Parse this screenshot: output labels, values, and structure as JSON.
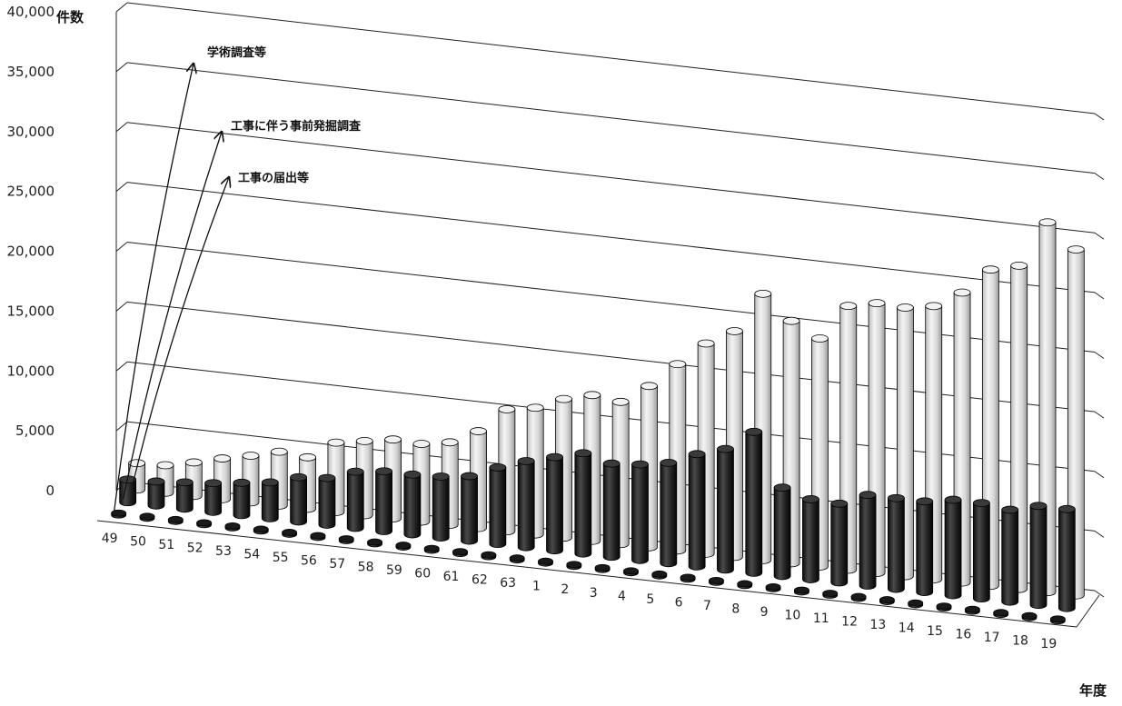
{
  "chart_data": {
    "type": "bar",
    "subtype": "3d-cylinder-clustered-depth",
    "ylabel": "件数",
    "xlabel": "年度",
    "ylim": [
      0,
      40000
    ],
    "y_ticks": [
      "0",
      "5,000",
      "10,000",
      "15,000",
      "20,000",
      "25,000",
      "30,000",
      "35,000",
      "40,000"
    ],
    "grid": true,
    "categories": [
      "49",
      "50",
      "51",
      "52",
      "53",
      "54",
      "55",
      "56",
      "57",
      "58",
      "59",
      "60",
      "61",
      "62",
      "63",
      "1",
      "2",
      "3",
      "4",
      "5",
      "6",
      "7",
      "8",
      "9",
      "10",
      "11",
      "12",
      "13",
      "14",
      "15",
      "16",
      "17",
      "18",
      "19"
    ],
    "series": [
      {
        "name": "工事の届出等",
        "color": "#1a1a1a",
        "values": [
          1900,
          2000,
          2200,
          2400,
          2700,
          3000,
          3700,
          3900,
          4700,
          5000,
          5000,
          5100,
          5400,
          6400,
          7200,
          7800,
          8400,
          7800,
          8000,
          8400,
          9400,
          10100,
          11800,
          7400,
          6700,
          6600,
          7600,
          7600,
          7600,
          8000,
          8000,
          7700,
          8300,
          8300
        ]
      },
      {
        "name": "工事に伴う事前発掘調査",
        "color": "#d8d8d8",
        "values": [
          2200,
          2300,
          2800,
          3400,
          3900,
          4500,
          4300,
          5800,
          6200,
          6600,
          6500,
          6900,
          8100,
          10200,
          10600,
          11600,
          12200,
          11900,
          13500,
          15600,
          17600,
          18900,
          22300,
          20300,
          19100,
          22100,
          22600,
          22500,
          22900,
          24300,
          26500,
          27100,
          31000,
          29000
        ]
      },
      {
        "name": "学術調査等",
        "color": "#2a2a2a",
        "values": [
          100,
          100,
          100,
          100,
          100,
          100,
          100,
          100,
          100,
          100,
          100,
          100,
          100,
          100,
          100,
          100,
          100,
          100,
          100,
          100,
          100,
          100,
          100,
          100,
          100,
          100,
          100,
          100,
          100,
          100,
          100,
          100,
          100,
          100
        ]
      }
    ],
    "annotations": [
      "学術調査等",
      "工事に伴う事前発掘調査",
      "工事の届出等"
    ]
  }
}
